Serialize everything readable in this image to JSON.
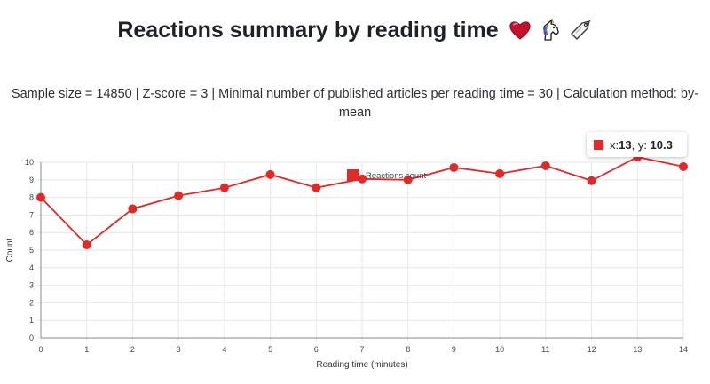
{
  "header": {
    "title": "Reactions summary by reading time"
  },
  "icons": [
    "heart-emoji",
    "unicorn-emoji",
    "label-tag-emoji"
  ],
  "subtitle": "Sample size = 14850 | Z-score = 3 | Minimal number of published articles per reading time = 30 | Calculation method: by-mean",
  "tooltip": {
    "x_label": "x: ",
    "x_value": "13",
    "y_label": ", y: ",
    "y_value": "10.3"
  },
  "colors": {
    "series": "#e02a2a",
    "grid": "#e6e6e6",
    "axis": "#888888"
  },
  "chart_data": {
    "type": "line",
    "xlabel": "Reading time (minutes)",
    "ylabel": "Count",
    "xlim": [
      0,
      14
    ],
    "ylim": [
      0,
      10
    ],
    "x_ticks": [
      0,
      1,
      2,
      3,
      4,
      5,
      6,
      7,
      8,
      9,
      10,
      11,
      12,
      13,
      14
    ],
    "y_ticks": [
      0,
      1,
      2,
      3,
      4,
      5,
      6,
      7,
      8,
      9,
      10
    ],
    "grid": true,
    "legend_position": "top-center",
    "series": [
      {
        "name": "Reactions count",
        "x": [
          0,
          1,
          2,
          3,
          4,
          5,
          6,
          7,
          8,
          9,
          10,
          11,
          12,
          13,
          14
        ],
        "y": [
          8.0,
          5.3,
          7.35,
          8.1,
          8.55,
          9.3,
          8.55,
          9.05,
          9.0,
          9.7,
          9.35,
          9.8,
          8.95,
          10.3,
          9.75
        ]
      }
    ]
  }
}
